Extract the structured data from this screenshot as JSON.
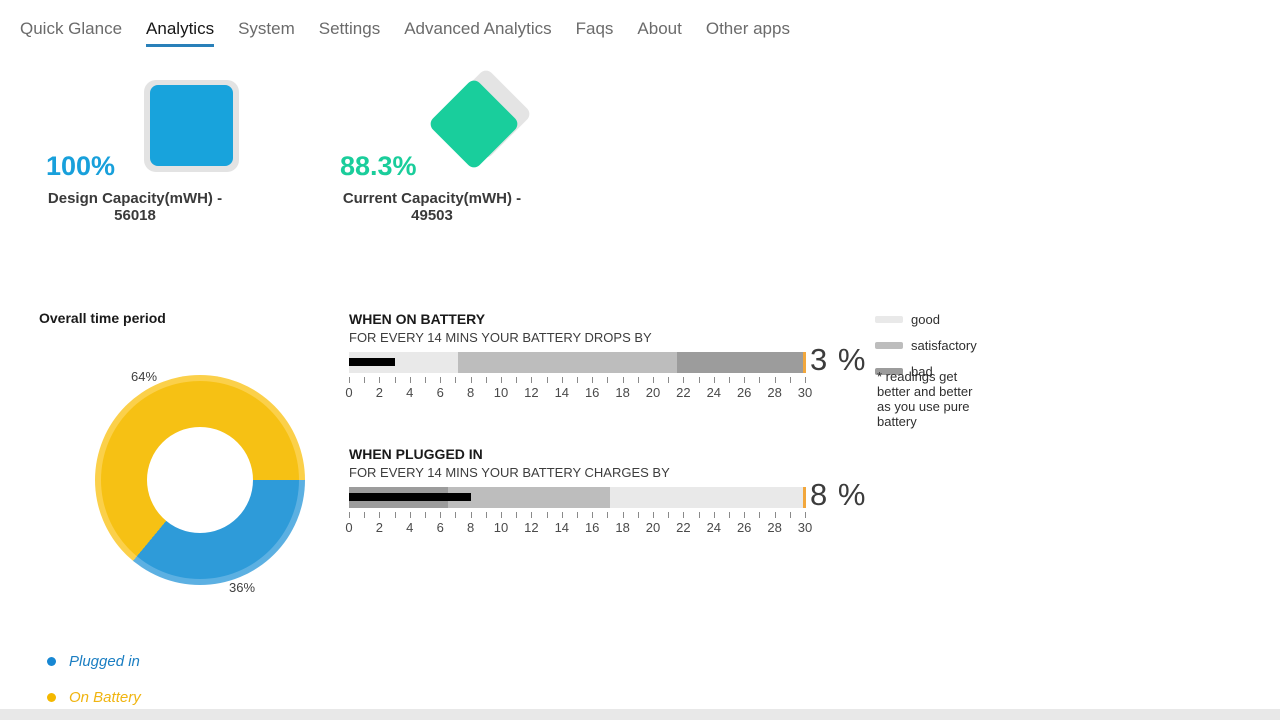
{
  "nav": {
    "items": [
      {
        "label": "Quick Glance",
        "active": false
      },
      {
        "label": "Analytics",
        "active": true
      },
      {
        "label": "System",
        "active": false
      },
      {
        "label": "Settings",
        "active": false
      },
      {
        "label": "Advanced Analytics",
        "active": false
      },
      {
        "label": "Faqs",
        "active": false
      },
      {
        "label": "About",
        "active": false
      },
      {
        "label": "Other apps",
        "active": false
      }
    ],
    "active_underline_color": "#2980b9"
  },
  "capacity_tiles": [
    {
      "percent": "100%",
      "caption": "Design Capacity(mWH) - 56018",
      "icon": "rounded-square-icon",
      "color": "#18a3dc"
    },
    {
      "percent": "88.3%",
      "caption": "Current Capacity(mWH) - 49503",
      "icon": "diamond-icon",
      "color": "#19ce9c"
    }
  ],
  "chart_data": [
    {
      "type": "pie",
      "title": "Overall time period",
      "slices": [
        {
          "label": "Plugged in",
          "value": 36,
          "display": "36%",
          "color": "#2e9bd9",
          "color_light": "#5cb0e2"
        },
        {
          "label": "On Battery",
          "value": 64,
          "display": "64%",
          "color": "#f6c114",
          "color_light": "#fbd04a"
        }
      ],
      "start_angle_deg": 90,
      "legend_position": "bottom-left",
      "legend": [
        {
          "label": "Plugged in",
          "dot_color": "#1787d3",
          "text_color": "#1b7ec2"
        },
        {
          "label": "On Battery",
          "dot_color": "#f4b800",
          "text_color": "#f0b40f"
        }
      ]
    },
    {
      "type": "bullet-gauge",
      "title": "WHEN ON BATTERY",
      "subtitle": "FOR EVERY 14 MINS YOUR BATTERY DROPS BY",
      "min": 0,
      "max": 30,
      "minor_tick_step": 1,
      "label_step": 2,
      "value": 3,
      "value_label": "3 %",
      "marker": 30,
      "marker_color": "#f2a73c",
      "bands": [
        {
          "name": "good",
          "from": 0,
          "to": 7.2
        },
        {
          "name": "satisfactory",
          "from": 7.2,
          "to": 21.6
        },
        {
          "name": "bad",
          "from": 21.6,
          "to": 30
        }
      ]
    },
    {
      "type": "bullet-gauge",
      "title": "WHEN PLUGGED IN",
      "subtitle": "FOR EVERY 14 MINS YOUR BATTERY CHARGES BY",
      "min": 0,
      "max": 30,
      "minor_tick_step": 1,
      "label_step": 2,
      "value": 8,
      "value_label": "8 %",
      "marker": 30,
      "marker_color": "#f2a73c",
      "bands": [
        {
          "name": "bad",
          "from": 0,
          "to": 6.5
        },
        {
          "name": "satisfactory",
          "from": 6.5,
          "to": 17.2
        },
        {
          "name": "good",
          "from": 17.2,
          "to": 30
        }
      ]
    }
  ],
  "gauge_legend": {
    "entries": [
      {
        "label": "good",
        "color": "#e9e9e9"
      },
      {
        "label": "satisfactory",
        "color": "#bdbdbd"
      },
      {
        "label": "bad",
        "color": "#9c9c9c"
      }
    ],
    "note": "* readings get better and better as you use pure battery"
  }
}
